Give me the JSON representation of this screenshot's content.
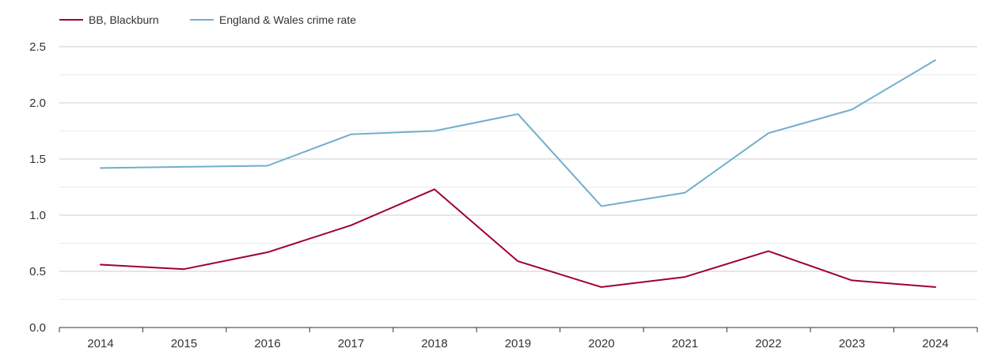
{
  "chart_data": {
    "type": "line",
    "x": [
      "2014",
      "2015",
      "2016",
      "2017",
      "2018",
      "2019",
      "2020",
      "2021",
      "2022",
      "2023",
      "2024"
    ],
    "series": [
      {
        "name": "BB, Blackburn",
        "color": "#a0002c",
        "values": [
          0.56,
          0.52,
          0.67,
          0.91,
          1.23,
          0.59,
          0.36,
          0.45,
          0.68,
          0.42,
          0.36
        ]
      },
      {
        "name": "England & Wales crime rate",
        "color": "#71aece",
        "values": [
          1.42,
          1.43,
          1.44,
          1.72,
          1.75,
          1.9,
          1.08,
          1.2,
          1.73,
          1.94,
          2.38
        ]
      }
    ],
    "yticks": [
      "0.0",
      "0.5",
      "1.0",
      "1.5",
      "2.0",
      "2.5"
    ],
    "ylim": [
      0,
      2.5
    ],
    "grid": true,
    "legend_position": "top-left"
  }
}
